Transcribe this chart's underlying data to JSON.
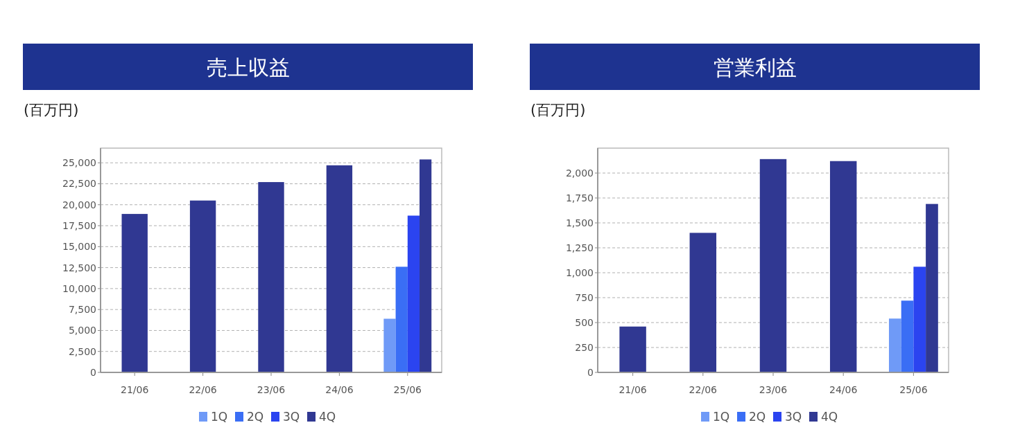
{
  "chart_data": [
    {
      "type": "bar",
      "title": "売上収益",
      "ylabel": "(百万円)",
      "categories": [
        "21/06",
        "22/06",
        "23/06",
        "24/06",
        "25/06"
      ],
      "ylim": [
        0,
        26750
      ],
      "yticks": [
        {
          "value": 0,
          "label": "0"
        },
        {
          "value": 2500,
          "label": "2,500"
        },
        {
          "value": 5000,
          "label": "5,000"
        },
        {
          "value": 7500,
          "label": "7,500"
        },
        {
          "value": 10000,
          "label": "10,000"
        },
        {
          "value": 12500,
          "label": "12,500"
        },
        {
          "value": 15000,
          "label": "15,000"
        },
        {
          "value": 17500,
          "label": "17,500"
        },
        {
          "value": 20000,
          "label": "20,000"
        },
        {
          "value": 22500,
          "label": "22,500"
        },
        {
          "value": 25000,
          "label": "25,000"
        }
      ],
      "grid": "y",
      "legend": "bottom",
      "series": [
        {
          "name": "1Q",
          "color": "#6f9af7",
          "values": [
            null,
            null,
            null,
            null,
            6400
          ]
        },
        {
          "name": "2Q",
          "color": "#3a6ef5",
          "values": [
            null,
            null,
            null,
            null,
            12600
          ]
        },
        {
          "name": "3Q",
          "color": "#2b44f0",
          "values": [
            null,
            null,
            null,
            null,
            18700
          ]
        },
        {
          "name": "4Q",
          "color": "#303892",
          "values": [
            18900,
            20500,
            22700,
            24700,
            25400
          ]
        }
      ]
    },
    {
      "type": "bar",
      "title": "営業利益",
      "ylabel": "(百万円)",
      "categories": [
        "21/06",
        "22/06",
        "23/06",
        "24/06",
        "25/06"
      ],
      "ylim": [
        0,
        2250
      ],
      "yticks": [
        {
          "value": 0,
          "label": "0"
        },
        {
          "value": 250,
          "label": "250"
        },
        {
          "value": 500,
          "label": "500"
        },
        {
          "value": 750,
          "label": "750"
        },
        {
          "value": 1000,
          "label": "1,000"
        },
        {
          "value": 1250,
          "label": "1,250"
        },
        {
          "value": 1500,
          "label": "1,500"
        },
        {
          "value": 1750,
          "label": "1,750"
        },
        {
          "value": 2000,
          "label": "2,000"
        }
      ],
      "grid": "y",
      "legend": "bottom",
      "series": [
        {
          "name": "1Q",
          "color": "#6f9af7",
          "values": [
            null,
            null,
            null,
            null,
            540
          ]
        },
        {
          "name": "2Q",
          "color": "#3a6ef5",
          "values": [
            null,
            null,
            null,
            null,
            720
          ]
        },
        {
          "name": "3Q",
          "color": "#2b44f0",
          "values": [
            null,
            null,
            null,
            null,
            1060
          ]
        },
        {
          "name": "4Q",
          "color": "#303892",
          "values": [
            460,
            1400,
            2140,
            2120,
            1690
          ]
        }
      ]
    }
  ]
}
